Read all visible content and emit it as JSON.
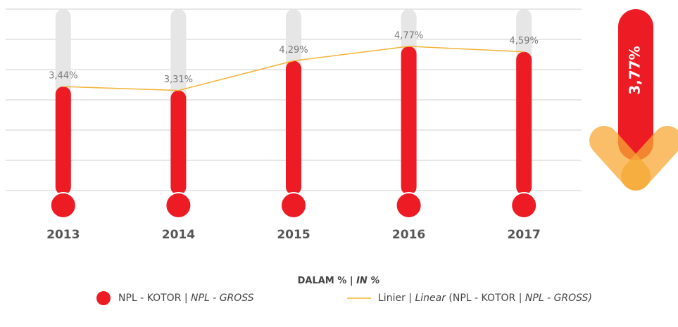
{
  "chart_data": {
    "type": "bar",
    "categories": [
      "2013",
      "2014",
      "2015",
      "2016",
      "2017"
    ],
    "series": [
      {
        "name": [
          {
            "text": "NPL - KOTOR | "
          },
          {
            "text": "NPL - GROSS",
            "italic": true
          }
        ],
        "type": "bar",
        "color": "#ed1c24",
        "values": [
          3.44,
          3.31,
          4.29,
          4.77,
          4.59
        ],
        "value_labels": [
          "3,44%",
          "3,31%",
          "4,29%",
          "4,77%",
          "4,59%"
        ]
      },
      {
        "name": [
          {
            "text": "Linier | "
          },
          {
            "text": "Linear",
            "italic": true
          },
          {
            "text": " (NPL - KOTOR | "
          },
          {
            "text": "NPL - GROSS)",
            "italic": true
          }
        ],
        "type": "line",
        "color": "#f5b335",
        "values": [
          3.44,
          3.31,
          4.29,
          4.77,
          4.59
        ]
      }
    ],
    "axis_title": [
      {
        "text": "DALAM % | "
      },
      {
        "text": "IN %",
        "italic": true
      }
    ],
    "highlight": {
      "value": 3.77,
      "label": "3,77%"
    },
    "ylim": [
      0,
      6
    ],
    "yticks": [
      0,
      1,
      2,
      3,
      4,
      5,
      6
    ],
    "grid": true
  }
}
